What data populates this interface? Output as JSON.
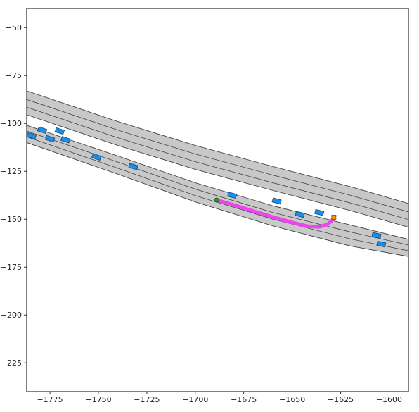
{
  "chart_data": {
    "type": "scatter",
    "title": "",
    "xlabel": "",
    "ylabel": "",
    "xlim": [
      -1787,
      -1590
    ],
    "ylim": [
      -240,
      -40
    ],
    "x_ticks": [
      -1775,
      -1750,
      -1725,
      -1700,
      -1675,
      -1650,
      -1625,
      -1600
    ],
    "y_ticks": [
      -50,
      -75,
      -100,
      -125,
      -150,
      -175,
      -200,
      -225
    ],
    "x_tick_labels": [
      "−1775",
      "−1750",
      "−1725",
      "−1700",
      "−1675",
      "−1650",
      "−1625",
      "−1600"
    ],
    "y_tick_labels": [
      "−50",
      "−75",
      "−100",
      "−125",
      "−150",
      "−175",
      "−200",
      "−225"
    ],
    "grid": false,
    "legend": "none",
    "colors": {
      "road": "#c8c8c8",
      "lane_line": "#333333",
      "vehicle": "#1a8fe3",
      "vehicle_edge": "#0b4a86",
      "ego_path": "#ee44ee",
      "goal": "#ff9900",
      "start": "#2ca02c"
    },
    "roads": [
      {
        "name": "upper",
        "left_edge": [
          [
            -1787,
            -83
          ],
          [
            -1740,
            -99
          ],
          [
            -1700,
            -111.5
          ],
          [
            -1660,
            -122.5
          ],
          [
            -1620,
            -133
          ],
          [
            -1590,
            -141.8
          ]
        ],
        "right_edge": [
          [
            -1787,
            -95.5
          ],
          [
            -1740,
            -111.5
          ],
          [
            -1700,
            -124
          ],
          [
            -1660,
            -135
          ],
          [
            -1620,
            -145.5
          ],
          [
            -1590,
            -154.2
          ]
        ],
        "lane_lines": [
          [
            [
              -1787,
              -87.5
            ],
            [
              -1740,
              -103.5
            ],
            [
              -1700,
              -116
            ],
            [
              -1660,
              -127
            ],
            [
              -1620,
              -137.5
            ],
            [
              -1590,
              -146.2
            ]
          ],
          [
            [
              -1787,
              -91.5
            ],
            [
              -1740,
              -107.5
            ],
            [
              -1700,
              -120
            ],
            [
              -1660,
              -131
            ],
            [
              -1620,
              -141.5
            ],
            [
              -1590,
              -150.2
            ]
          ]
        ]
      },
      {
        "name": "lower",
        "left_edge": [
          [
            -1787,
            -101
          ],
          [
            -1740,
            -117
          ],
          [
            -1700,
            -131
          ],
          [
            -1660,
            -143
          ],
          [
            -1620,
            -153
          ],
          [
            -1590,
            -160.5
          ]
        ],
        "right_edge": [
          [
            -1787,
            -110
          ],
          [
            -1740,
            -126.5
          ],
          [
            -1700,
            -141
          ],
          [
            -1660,
            -153.5
          ],
          [
            -1620,
            -164
          ],
          [
            -1590,
            -169.5
          ]
        ],
        "lane_lines": [
          [
            [
              -1787,
              -104
            ],
            [
              -1740,
              -120.2
            ],
            [
              -1700,
              -134.3
            ],
            [
              -1660,
              -146.5
            ],
            [
              -1620,
              -156.7
            ],
            [
              -1590,
              -163.5
            ]
          ],
          [
            [
              -1787,
              -107
            ],
            [
              -1740,
              -123.4
            ],
            [
              -1700,
              -137.7
            ],
            [
              -1660,
              -150
            ],
            [
              -1620,
              -160.3
            ],
            [
              -1590,
              -166.5
            ]
          ]
        ]
      }
    ],
    "vehicles": [
      {
        "x": -1784.5,
        "y": -106.5,
        "angle": 18
      },
      {
        "x": -1779,
        "y": -103.5,
        "angle": 18
      },
      {
        "x": -1770,
        "y": -104,
        "angle": 18
      },
      {
        "x": -1775,
        "y": -108,
        "angle": 18
      },
      {
        "x": -1767,
        "y": -108.5,
        "angle": 18
      },
      {
        "x": -1751,
        "y": -117.5,
        "angle": 18
      },
      {
        "x": -1732,
        "y": -122.5,
        "angle": 16
      },
      {
        "x": -1681,
        "y": -137.5,
        "angle": 15
      },
      {
        "x": -1658,
        "y": -140.5,
        "angle": 15
      },
      {
        "x": -1646,
        "y": -147.5,
        "angle": 14
      },
      {
        "x": -1636,
        "y": -146.5,
        "angle": 14
      },
      {
        "x": -1606.5,
        "y": -158.5,
        "angle": 12
      },
      {
        "x": -1604,
        "y": -163,
        "angle": 12
      }
    ],
    "ego_path": [
      [
        -1689,
        -140
      ],
      [
        -1680,
        -142.6
      ],
      [
        -1670,
        -145.8
      ],
      [
        -1660,
        -148.9
      ],
      [
        -1650,
        -151.7
      ],
      [
        -1642,
        -153.7
      ],
      [
        -1636,
        -154
      ],
      [
        -1632,
        -152.8
      ],
      [
        -1629.5,
        -150.8
      ],
      [
        -1628.5,
        -149
      ]
    ],
    "start": {
      "x": -1689,
      "y": -140
    },
    "goal": {
      "x": -1628.5,
      "y": -149
    }
  }
}
